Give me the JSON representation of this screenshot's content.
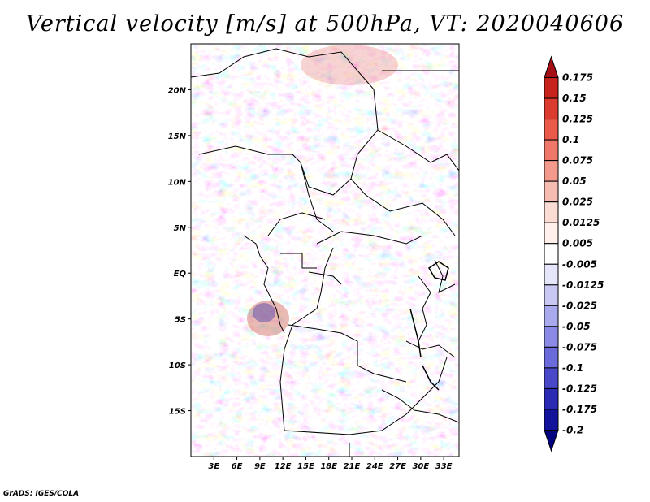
{
  "title": "Vertical velocity [m/s] at 500hPa, VT: 2020040606",
  "credit": "GrADS: IGES/COLA",
  "map": {
    "lat_labels": [
      "20N",
      "15N",
      "10N",
      "5N",
      "EQ",
      "5S",
      "10S",
      "15S"
    ],
    "lat_values": [
      20,
      15,
      10,
      5,
      0,
      -5,
      -10,
      -15
    ],
    "lon_labels": [
      "3E",
      "6E",
      "9E",
      "12E",
      "15E",
      "18E",
      "21E",
      "24E",
      "27E",
      "30E",
      "33E"
    ],
    "lon_values": [
      3,
      6,
      9,
      12,
      15,
      18,
      21,
      24,
      27,
      30,
      33
    ],
    "lon_range": [
      0,
      35
    ],
    "lat_range": [
      -20,
      25
    ]
  },
  "colorbar": {
    "labels": [
      "0.175",
      "0.15",
      "0.125",
      "0.1",
      "0.075",
      "0.05",
      "0.025",
      "0.0125",
      "0.005",
      "-0.005",
      "-0.0125",
      "-0.025",
      "-0.05",
      "-0.075",
      "-0.1",
      "-0.125",
      "-0.175",
      "-0.2"
    ],
    "colors": [
      "#a50f15",
      "#c8221d",
      "#dc3b30",
      "#e95a4a",
      "#f0786a",
      "#f39a8c",
      "#f7bcb1",
      "#fbdcd5",
      "#fff0ec",
      "#ffffff",
      "#e6e6fa",
      "#c8c8f3",
      "#a9a9ee",
      "#8a8ae6",
      "#6a6adb",
      "#4848c9",
      "#2a2ab3",
      "#12129a",
      "#000080"
    ]
  }
}
